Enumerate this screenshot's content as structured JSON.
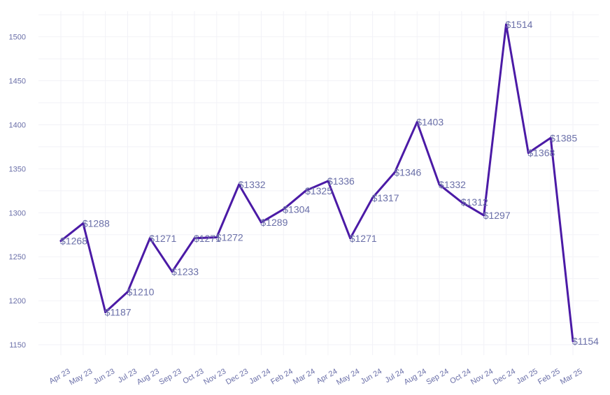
{
  "chart_data": {
    "type": "line",
    "title": "",
    "xlabel": "",
    "ylabel": "",
    "ylim": [
      1140,
      1520
    ],
    "yticks": [
      1150,
      1200,
      1250,
      1300,
      1350,
      1400,
      1450,
      1500
    ],
    "grid": true,
    "legend": "none",
    "line_color": "#4b1aa6",
    "label_color": "#6a6fa8",
    "categories": [
      "Apr 23",
      "May 23",
      "Jun 23",
      "Jul 23",
      "Aug 23",
      "Sep 23",
      "Oct 23",
      "Nov 23",
      "Dec 23",
      "Jan 24",
      "Feb 24",
      "Mar 24",
      "Apr 24",
      "May 24",
      "Jun 24",
      "Jul 24",
      "Aug 24",
      "Sep 24",
      "Oct 24",
      "Nov 24",
      "Dec 24",
      "Jan 25",
      "Feb 25",
      "Mar 25"
    ],
    "values": [
      1268,
      1288,
      1187,
      1210,
      1271,
      1233,
      1271,
      1272,
      1332,
      1289,
      1304,
      1325,
      1336,
      1271,
      1317,
      1346,
      1403,
      1332,
      1312,
      1297,
      1514,
      1368,
      1385,
      1154
    ],
    "data_labels": [
      "$1268",
      "$1288",
      "$1187",
      "$1210",
      "$1271",
      "$1233",
      "$1271",
      "$1272",
      "$1332",
      "$1289",
      "$1304",
      "$1325",
      "$1336",
      "$1271",
      "$1317",
      "$1346",
      "$1403",
      "$1332",
      "$1312",
      "$1297",
      "$1514",
      "$1368",
      "$1385",
      "$1154"
    ]
  }
}
